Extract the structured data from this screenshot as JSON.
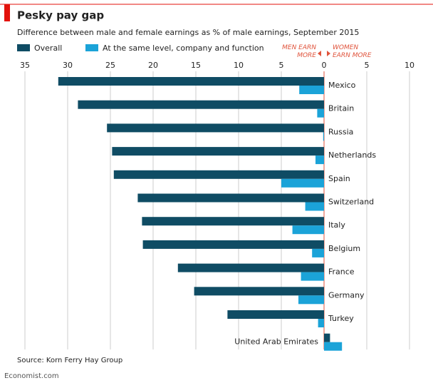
{
  "chart_data": {
    "type": "hbar",
    "title": "Pesky pay gap",
    "subtitle": "Difference between male and female earnings as % of male earnings, September 2015",
    "annotation_left": "MEN EARN MORE",
    "annotation_right": "WOMEN EARN MORE",
    "source": "Source: Korn Ferry Hay Group",
    "footer": "Economist.com",
    "categories": [
      "Mexico",
      "Britain",
      "Russia",
      "Netherlands",
      "Spain",
      "Switzerland",
      "Italy",
      "Belgium",
      "France",
      "Germany",
      "Turkey",
      "United Arab Emirates"
    ],
    "series": [
      {
        "name": "Overall",
        "color": "#0f4c64",
        "values": [
          31.1,
          28.8,
          25.4,
          24.8,
          24.6,
          21.8,
          21.3,
          21.2,
          17.1,
          15.2,
          11.3,
          -0.7
        ]
      },
      {
        "name": "At the same level, company and function",
        "color": "#1ba3d8",
        "values": [
          2.9,
          0.8,
          0.1,
          1,
          5,
          2.2,
          3.7,
          1.4,
          2.7,
          3,
          0.7,
          -2.1
        ]
      }
    ],
    "xlim": [
      35,
      -10
    ],
    "xticks": [
      35,
      30,
      25,
      20,
      15,
      10,
      5,
      0,
      {
        "value": -5,
        "label": "5"
      },
      {
        "value": -10,
        "label": "10"
      }
    ],
    "grid": true
  }
}
